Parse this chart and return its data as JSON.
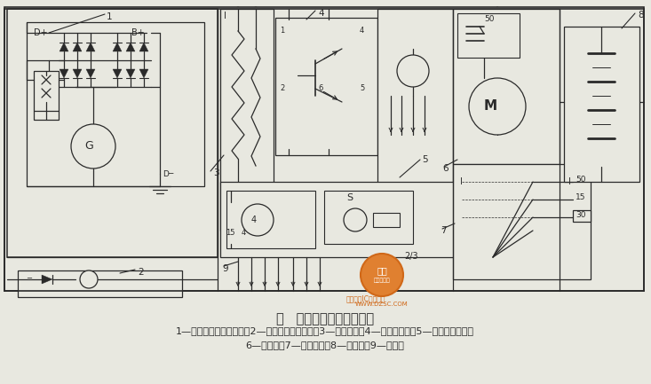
{
  "bg_color": "#e8e8e0",
  "lc": "#2a2a2a",
  "title": "图   电源、启动、点火电路",
  "cap1": "1—发电机及电压调节器；2—发电机故障指示灯；3—点火线圈；4—点火控制器；5—无触点分电器；",
  "cap2": "6—起动机；7—点火开关；8—蓄电池；9—火花塞",
  "wm_color": "#d06818",
  "wm_fill": "#e08030"
}
